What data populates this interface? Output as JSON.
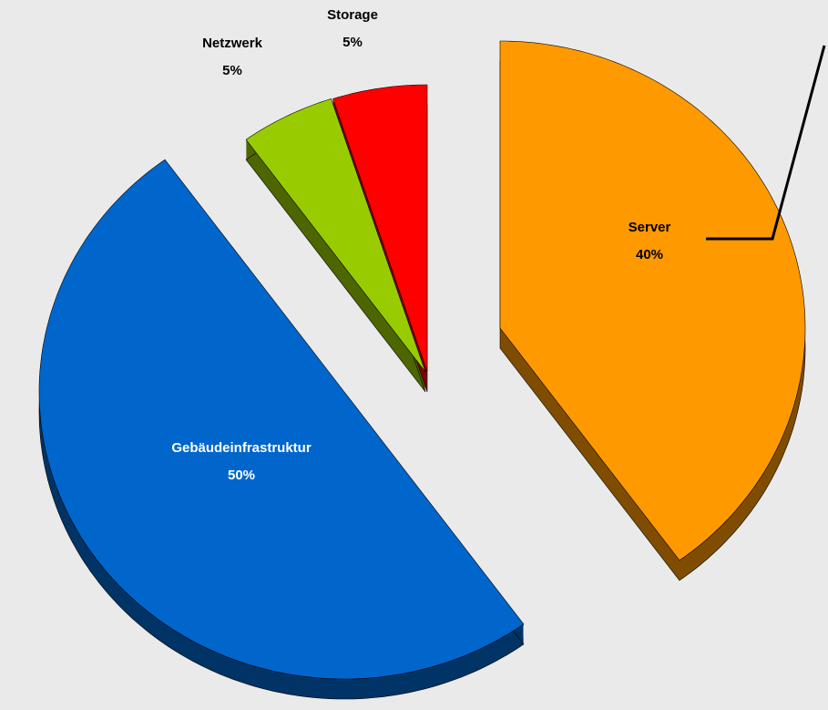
{
  "chart_data": {
    "type": "pie",
    "categories": [
      "Server",
      "Gebäudeinfrastruktur",
      "Netzwerk",
      "Storage"
    ],
    "values": [
      40,
      50,
      5,
      5
    ],
    "value_labels": [
      "40%",
      "50%",
      "5%",
      "5%"
    ],
    "colors": [
      "#ff9900",
      "#0066cc",
      "#99cc00",
      "#ff0000"
    ]
  }
}
